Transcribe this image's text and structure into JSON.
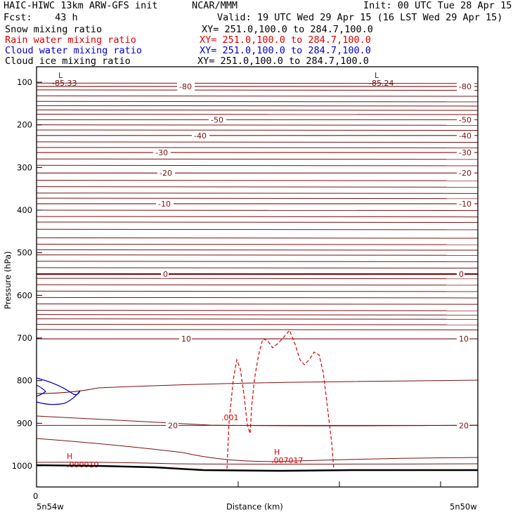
{
  "header": {
    "title": "HAIC-HIWC 13km ARW-GFS init",
    "org": "NCAR/MMM",
    "init": "Init: 00 UTC Tue 28 Apr 15",
    "fcst": "Fcst:    43 h",
    "valid": "Valid: 19 UTC Wed 29 Apr 15 (16 LST Wed 29 Apr 15)",
    "fields": [
      {
        "name": "Snow mixing ratio",
        "xy": "XY= 251.0,100.0 to 284.7,100.0",
        "color": "#000000"
      },
      {
        "name": "Rain water mixing ratio",
        "xy": "XY= 251.0,100.0 to 284.7,100.0",
        "color": "#dd0000"
      },
      {
        "name": "Cloud water mixing ratio",
        "xy": "XY= 251.0,100.0 to 284.7,100.0",
        "color": "#0000cc"
      },
      {
        "name": "Cloud ice mixing ratio",
        "xy": "XY= 251.0,100.0 to 284.7,100.0",
        "color": "#000000"
      }
    ]
  },
  "chart_data": {
    "type": "line",
    "xlabel": "Distance (km)",
    "ylabel": "Pressure (hPa)",
    "x_tick_labels": [
      "0"
    ],
    "x_end_labels": {
      "left": "5n54w",
      "right": "5n50w"
    },
    "y_ticks": [
      100,
      200,
      300,
      400,
      500,
      600,
      700,
      800,
      900,
      1000
    ],
    "y_range": [
      1050,
      70
    ],
    "temperature_contours": {
      "color": "#7a1010",
      "levels": [
        {
          "value": -80,
          "label": "-80",
          "pressure": 110
        },
        {
          "value": -50,
          "label": "-50",
          "pressure": 188
        },
        {
          "value": -40,
          "label": "-40",
          "pressure": 225
        },
        {
          "value": -30,
          "label": "-30",
          "pressure": 265
        },
        {
          "value": -20,
          "label": "-20",
          "pressure": 313
        },
        {
          "value": -10,
          "label": "-10",
          "pressure": 385
        },
        {
          "value": 0,
          "label": "0",
          "pressure": 550
        },
        {
          "value": 10,
          "label": "10",
          "pressure": 702
        },
        {
          "value": 20,
          "label": "20",
          "pressure": 905
        }
      ],
      "extrema": [
        {
          "type": "L",
          "value": "-85.33"
        },
        {
          "type": "L",
          "value": "-85.24"
        }
      ]
    },
    "rain_water": {
      "color": "#dd0000",
      "contour_label": ".001",
      "max": {
        "type": "H",
        "value": ".007017"
      },
      "min": {
        "type": "H",
        "value": ".000010"
      }
    },
    "cloud_water": {
      "color": "#0000cc"
    }
  }
}
